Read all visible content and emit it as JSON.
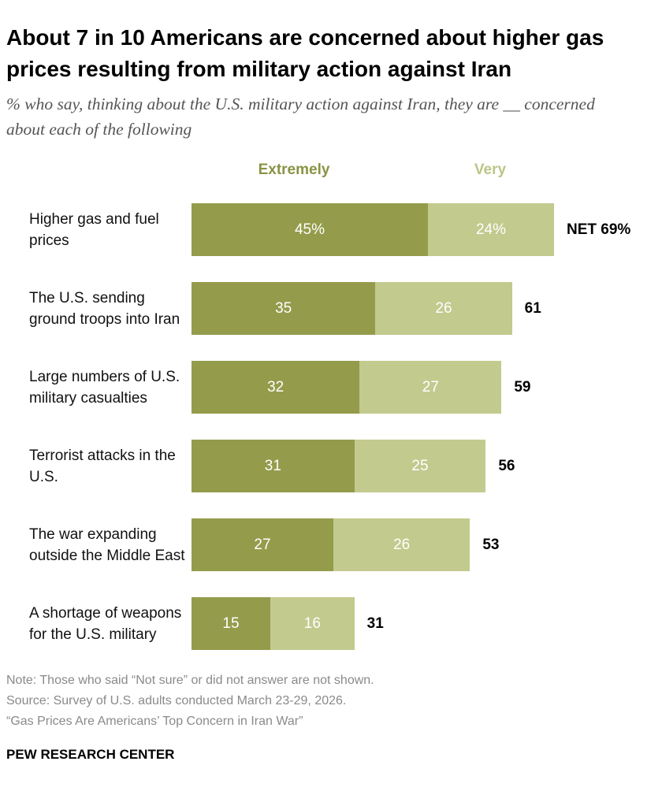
{
  "chart_data": {
    "type": "stacked-bar-horizontal",
    "title": "About 7 in 10 Americans are concerned about higher gas prices resulting from military action against Iran",
    "subtitle": "% who say, thinking about the U.S. military action against Iran, they are __ concerned about each of the following",
    "categories": [
      "Higher gas and fuel prices",
      "The U.S. sending ground troops into Iran",
      "Large numbers of U.S. military casualties",
      "Terrorist attacks in the U.S.",
      "The war expanding outside the Middle East",
      "A shortage of weapons for the U.S. military"
    ],
    "series": [
      {
        "name": "Extremely",
        "color": "#949c4c",
        "values": [
          45,
          35,
          32,
          31,
          27,
          15
        ],
        "value_labels": [
          "45%",
          "35",
          "32",
          "31",
          "27",
          "15"
        ]
      },
      {
        "name": "Very",
        "color": "#c3ca8e",
        "values": [
          24,
          26,
          27,
          25,
          26,
          16
        ],
        "value_labels": [
          "24%",
          "26",
          "27",
          "25",
          "26",
          "16"
        ]
      }
    ],
    "totals": [
      69,
      61,
      59,
      56,
      53,
      31
    ],
    "total_labels": [
      "NET 69%",
      "61",
      "59",
      "56",
      "53",
      "31"
    ],
    "notes": [
      "Note: Those who said “Not sure” or did not answer are not shown.",
      "Source: Survey of U.S. adults conducted March 23-29, 2026.",
      "“Gas Prices Are Americans’ Top Concern in Iran War”"
    ],
    "source_org": "PEW RESEARCH CENTER"
  }
}
